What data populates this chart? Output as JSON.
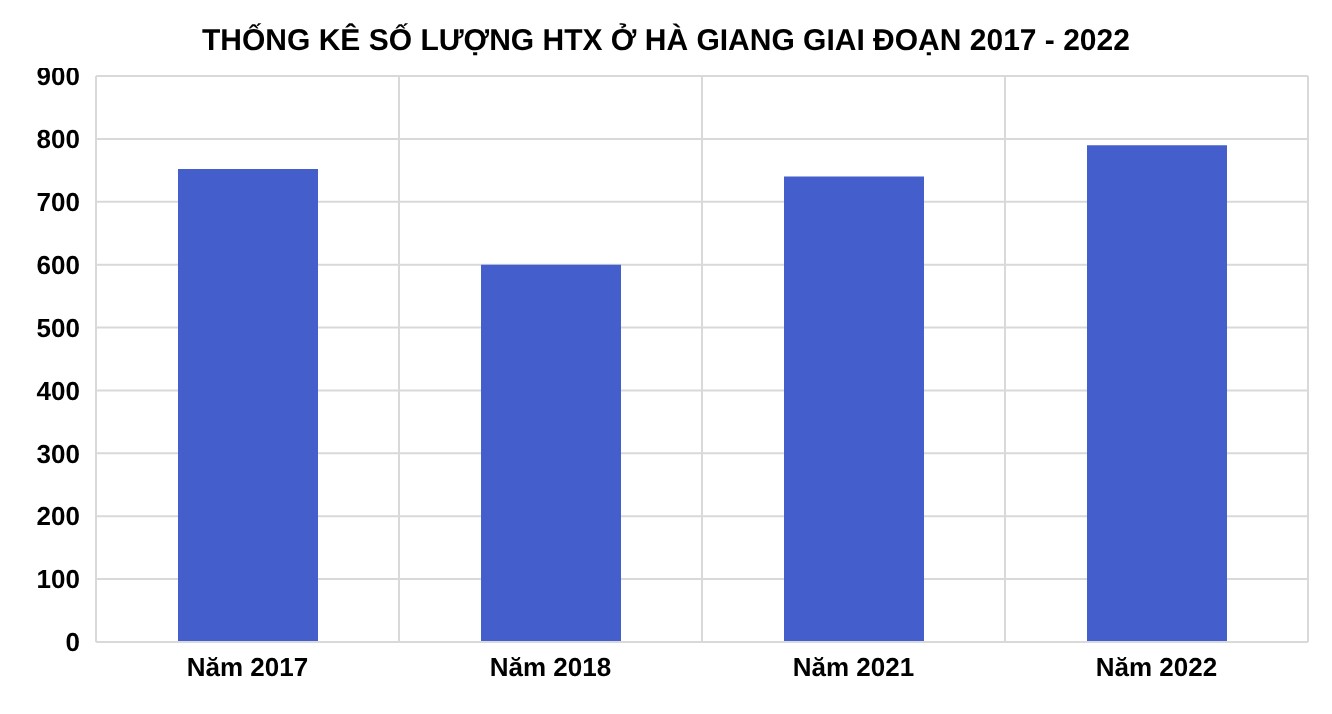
{
  "chart_data": {
    "type": "bar",
    "title": "THỐNG KÊ SỐ LƯỢNG HTX Ở HÀ GIANG GIAI ĐOẠN 2017 - 2022",
    "categories": [
      "Năm 2017",
      "Năm 2018",
      "Năm 2021",
      "Năm 2022"
    ],
    "values": [
      752,
      600,
      740,
      790
    ],
    "color": "#445fcb",
    "ylim": [
      0,
      900
    ],
    "yticks": [
      0,
      100,
      200,
      300,
      400,
      500,
      600,
      700,
      800,
      900
    ],
    "grid": true
  }
}
